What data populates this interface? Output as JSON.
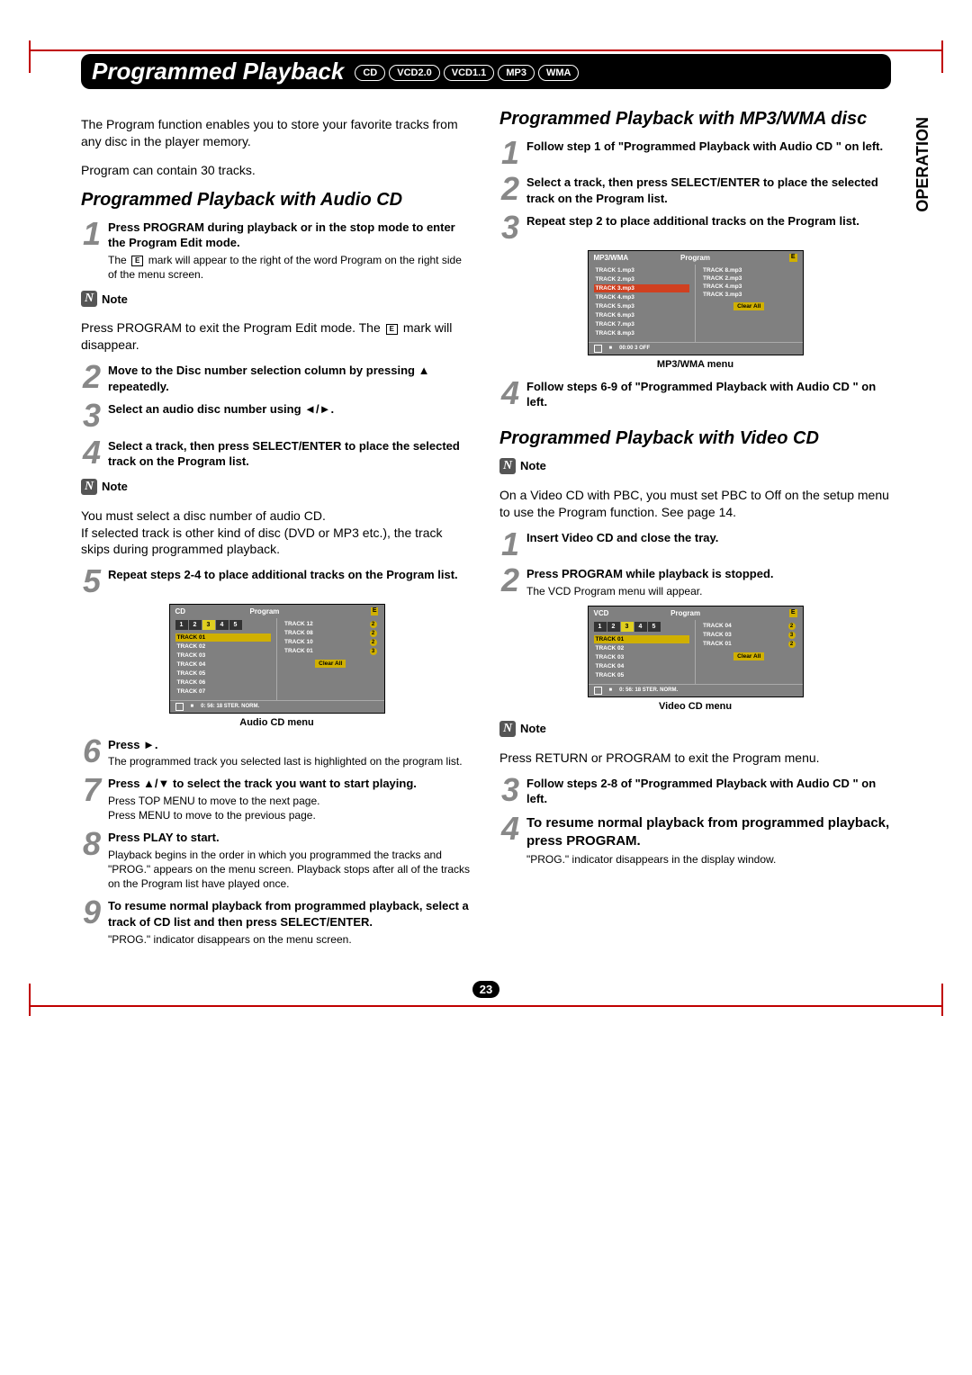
{
  "header": {
    "title": "Programmed Playback",
    "badges": [
      "CD",
      "VCD2.0",
      "VCD1.1",
      "MP3",
      "WMA"
    ]
  },
  "side_tab": "OPERATION",
  "page_number": "23",
  "left": {
    "intro": "The Program function enables you to store your favorite tracks from any disc in the player memory.",
    "subtext": "Program can contain 30 tracks.",
    "section1_title": "Programmed Playback with Audio CD",
    "steps": [
      {
        "num": "1",
        "title": "Press PROGRAM during playback or in the stop mode to enter the Program Edit mode.",
        "desc_pre": "The ",
        "desc_post": " mark will appear to the right of the word Program on the right side of the menu screen."
      },
      {
        "num": "2",
        "title": "Move to the Disc number selection column by pressing ▲ repeatedly."
      },
      {
        "num": "3",
        "title": "Select an audio disc number using ◄/►."
      },
      {
        "num": "4",
        "title": "Select a track, then press SELECT/ENTER to place the selected track on the Program list."
      },
      {
        "num": "5",
        "title": "Repeat steps 2-4 to place additional tracks on the Program list."
      },
      {
        "num": "6",
        "title": "Press ►.",
        "desc": "The programmed track you selected last is highlighted on the program list."
      },
      {
        "num": "7",
        "title": "Press ▲/▼ to select the track you want to start playing.",
        "desc": "Press TOP MENU to move to the next page.\nPress MENU to move to the previous page."
      },
      {
        "num": "8",
        "title": "Press PLAY to start.",
        "desc": "Playback begins in the order in which you programmed the tracks and \"PROG.\" appears on the menu screen. Playback stops after all of the tracks on the Program list have played once."
      },
      {
        "num": "9",
        "title": "To resume normal playback from programmed playback, select a track of CD list and then press SELECT/ENTER.",
        "desc": "\"PROG.\" indicator disappears on the menu screen."
      }
    ],
    "note1_label": "Note",
    "note1_text_pre": "Press PROGRAM to exit the Program Edit mode.\nThe ",
    "note1_text_post": " mark will disappear.",
    "note2_label": "Note",
    "note2_text": "You must select a disc number of audio CD.\nIf selected track is other kind of disc (DVD or MP3 etc.), the track skips during programmed playback.",
    "cd_menu": {
      "caption": "Audio CD menu",
      "header_left": "CD",
      "header_right": "Program",
      "e_mark": "E",
      "disc_tabs": [
        "1",
        "2",
        "3",
        "4",
        "5"
      ],
      "active_tab": 2,
      "tracks": [
        "TRACK 01",
        "TRACK 02",
        "TRACK 03",
        "TRACK 04",
        "TRACK 05",
        "TRACK 06",
        "TRACK 07"
      ],
      "prog_tracks": [
        {
          "name": "TRACK 12",
          "disc": "2"
        },
        {
          "name": "TRACK 08",
          "disc": "2"
        },
        {
          "name": "TRACK 10",
          "disc": "2"
        },
        {
          "name": "TRACK 01",
          "disc": "3"
        }
      ],
      "clear_all": "Clear All",
      "footer": "0: 56: 18    STER.    NORM."
    }
  },
  "right": {
    "section1_title": "Programmed Playback with MP3/WMA disc",
    "steps1": [
      {
        "num": "1",
        "title": "Follow step 1 of \"Programmed Playback with Audio CD \" on left."
      },
      {
        "num": "2",
        "title": "Select a track, then press SELECT/ENTER to place the selected track on the Program list."
      },
      {
        "num": "3",
        "title": "Repeat step 2 to place additional tracks on the Program list."
      },
      {
        "num": "4",
        "title": "Follow steps 6-9 of \"Programmed Playback with Audio CD \" on left."
      }
    ],
    "mp3_menu": {
      "caption": "MP3/WMA menu",
      "header_left": "MP3/WMA",
      "header_right": "Program",
      "e_mark": "E",
      "tracks": [
        "TRACK 1.mp3",
        "TRACK 2.mp3",
        "TRACK 3.mp3",
        "TRACK 4.mp3",
        "TRACK 5.mp3",
        "TRACK 6.mp3",
        "TRACK 7.mp3",
        "TRACK 8.mp3"
      ],
      "prog_tracks": [
        "TRACK 8.mp3",
        "TRACK 2.mp3",
        "TRACK 4.mp3",
        "TRACK 3.mp3"
      ],
      "clear_all": "Clear All",
      "footer": "00:00    3    OFF"
    },
    "section2_title": "Programmed Playback with Video CD",
    "note1_label": "Note",
    "note1_text": "On a Video CD with PBC, you must set PBC to Off on the setup menu to use the Program function. See page 14.",
    "steps2": [
      {
        "num": "1",
        "title": "Insert Video CD and close the tray."
      },
      {
        "num": "2",
        "title": "Press PROGRAM while playback is stopped.",
        "desc": "The VCD Program menu will appear."
      },
      {
        "num": "3",
        "title": "Follow steps 2-8 of \"Programmed Playback with Audio CD \" on left."
      },
      {
        "num": "4",
        "title": "To resume normal playback from programmed playback, press PROGRAM.",
        "large": true,
        "desc": "\"PROG.\" indicator disappears in the display window."
      }
    ],
    "vcd_menu": {
      "caption": "Video CD menu",
      "header_left": "VCD",
      "header_right": "Program",
      "e_mark": "E",
      "disc_tabs": [
        "1",
        "2",
        "3",
        "4",
        "5"
      ],
      "active_tab": 2,
      "tracks": [
        "TRACK 01",
        "TRACK 02",
        "TRACK 03",
        "TRACK 04",
        "TRACK 05"
      ],
      "prog_tracks": [
        {
          "name": "TRACK 04",
          "disc": "2"
        },
        {
          "name": "TRACK 03",
          "disc": "3"
        },
        {
          "name": "TRACK 01",
          "disc": "2"
        }
      ],
      "clear_all": "Clear All",
      "footer": "0: 56: 18    STER.    NORM."
    },
    "note2_label": "Note",
    "note2_text": "Press RETURN or PROGRAM to exit the Program menu."
  }
}
